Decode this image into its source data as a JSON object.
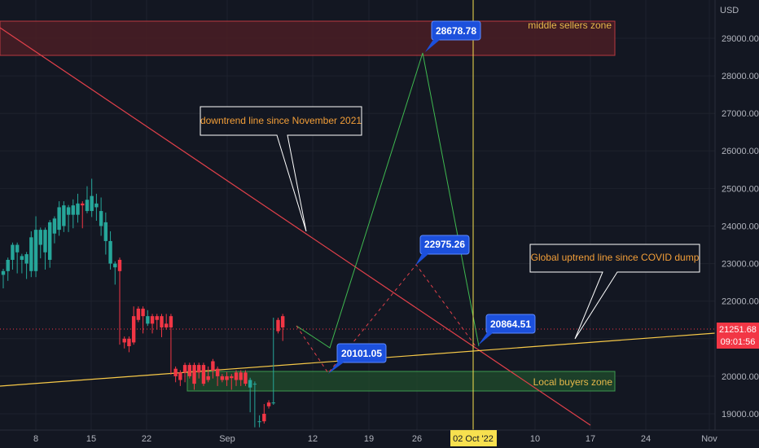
{
  "chart_data": {
    "type": "candlestick",
    "currency": "USD",
    "y_range": [
      18760,
      30100
    ],
    "y_ticks": [
      "19000.00",
      "20000.00",
      "21000.00",
      "22000.00",
      "23000.00",
      "24000.00",
      "25000.00",
      "26000.00",
      "27000.00",
      "28000.00",
      "29000.00"
    ],
    "x_ticks": [
      "8",
      "15",
      "22",
      "Sep",
      "12",
      "19",
      "26",
      "02 Oct '22",
      "10",
      "17",
      "24",
      "Nov"
    ],
    "crosshair_date": "02 Oct '22",
    "last_price": "21251.68",
    "countdown": "09:01:56",
    "candles": [
      [
        22700,
        22800,
        22500,
        22400
      ],
      [
        22800,
        23100,
        22600,
        22700
      ],
      [
        23100,
        23500,
        22900,
        22900
      ],
      [
        23300,
        23500,
        22900,
        22800
      ],
      [
        23100,
        23200,
        22900,
        22800
      ],
      [
        23000,
        23250,
        22700,
        22650
      ],
      [
        22800,
        23700,
        22700,
        23800
      ],
      [
        22800,
        23900,
        22700,
        24200
      ],
      [
        23500,
        23900,
        23300,
        23200
      ],
      [
        23300,
        23900,
        23000,
        22900
      ],
      [
        23100,
        24100,
        22950,
        23700
      ],
      [
        23800,
        24200,
        23600,
        23900
      ],
      [
        23900,
        24500,
        23800,
        24600
      ],
      [
        24000,
        24550,
        23900,
        24600
      ],
      [
        24300,
        24500,
        24000,
        23900
      ],
      [
        24300,
        24550,
        24000,
        24650
      ],
      [
        24300,
        24600,
        24150,
        24800
      ],
      [
        24600,
        24550,
        24000,
        24600
      ],
      [
        24400,
        24700,
        24400,
        25000
      ],
      [
        24400,
        24800,
        24300,
        25200
      ],
      [
        24500,
        24600,
        24200,
        24800
      ],
      [
        24000,
        24400,
        23800,
        24700
      ],
      [
        23600,
        24100,
        23300,
        24300
      ],
      [
        23000,
        23600,
        22900,
        23800
      ],
      [
        22900,
        23000,
        22700,
        22500
      ],
      [
        23100,
        22800,
        21000,
        20900
      ],
      [
        21000,
        20900,
        20900,
        20800
      ],
      [
        21000,
        20800,
        21000,
        20700
      ],
      [
        21600,
        20900,
        21600,
        21800
      ],
      [
        21800,
        21500,
        21500,
        21500
      ],
      [
        21800,
        21600,
        21300,
        21200
      ],
      [
        21400,
        21600,
        21500,
        21700
      ],
      [
        21600,
        21400,
        21400,
        21200
      ],
      [
        21600,
        21500,
        21400,
        21300
      ],
      [
        21600,
        21300,
        21400,
        21100
      ],
      [
        21400,
        21300,
        21400,
        21600
      ],
      [
        21600,
        21300,
        20200,
        20100
      ],
      [
        20200,
        20000,
        20000,
        19900
      ],
      [
        20100,
        19900,
        19800,
        19800
      ],
      [
        20300,
        20100,
        20000,
        19900
      ],
      [
        20300,
        20000,
        20100,
        20000
      ],
      [
        20300,
        19800,
        20300,
        19700
      ],
      [
        20300,
        20100,
        20200,
        20000
      ],
      [
        20300,
        19800,
        19900,
        19800
      ],
      [
        20000,
        19900,
        20200,
        20000
      ],
      [
        20400,
        20150,
        20100,
        20000
      ],
      [
        20200,
        20000,
        19900,
        19800
      ],
      [
        20000,
        19900,
        20000,
        20000
      ],
      [
        20000,
        19900,
        20050,
        19800
      ],
      [
        20000,
        19950,
        19900,
        19700
      ],
      [
        20100,
        19900,
        20100,
        19800
      ],
      [
        20100,
        19900,
        19800,
        19800
      ],
      [
        20100,
        19800,
        19900,
        19900
      ],
      [
        19700,
        19900,
        19200,
        19100
      ],
      [
        19800,
        19800,
        18800,
        18700
      ],
      [
        18800,
        18800,
        18900,
        18700
      ],
      [
        19000,
        18800,
        19200,
        19100
      ],
      [
        19300,
        19200,
        19300,
        19200
      ],
      [
        19300,
        19300,
        21400,
        21500
      ],
      [
        21500,
        21200,
        21300,
        21200
      ],
      [
        21600,
        21300,
        21100,
        21000
      ]
    ],
    "zones": [
      {
        "label": "middle sellers zone",
        "y_from": 28600,
        "y_to": 29900
      },
      {
        "label": "Local buyers zone",
        "y_from": 19650,
        "y_to": 20150
      }
    ],
    "trendlines": [
      {
        "label": "downtrend line since November 2021"
      },
      {
        "label": "Global uptrend line since COVID dump"
      }
    ],
    "price_tags": [
      "28678.78",
      "22975.26",
      "20101.05",
      "20864.51"
    ],
    "annotations": [
      "downtrend line since November 2021",
      "Global uptrend line since COVID dump"
    ],
    "colors": {
      "up": "#26a69a",
      "down": "#f23645",
      "background": "#131722",
      "grid": "#1e222d",
      "uptrend": "#f7c948",
      "downtrend": "#e0404a",
      "tag": "#2962ff",
      "crosshair": "#f7e04f"
    }
  }
}
